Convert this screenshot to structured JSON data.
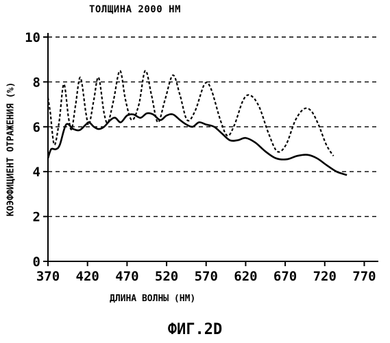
{
  "figure": {
    "title": "ТОЛЩИНА 2000 НМ",
    "caption": "ФИГ.2D"
  },
  "chart_data": {
    "type": "line",
    "title": "ТОЛЩИНА 2000 НМ",
    "xlabel": "ДЛИНА ВОЛНЫ (НМ)",
    "ylabel": "КОЭФФИЦИЕНТ ОТРАЖЕНИЯ (%)",
    "xlim": [
      370,
      780
    ],
    "ylim": [
      0,
      10
    ],
    "x_ticks": [
      370,
      420,
      470,
      520,
      570,
      620,
      670,
      720,
      770
    ],
    "y_ticks": [
      0,
      2,
      4,
      6,
      8,
      10
    ],
    "grid": "horizontal dashed",
    "series": [
      {
        "style": "solid",
        "points": [
          [
            370,
            4.6
          ],
          [
            374,
            5.0
          ],
          [
            380,
            5.0
          ],
          [
            385,
            5.2
          ],
          [
            393,
            6.1
          ],
          [
            402,
            5.9
          ],
          [
            410,
            5.85
          ],
          [
            418,
            6.1
          ],
          [
            422,
            6.2
          ],
          [
            428,
            6.0
          ],
          [
            434,
            5.9
          ],
          [
            441,
            6.0
          ],
          [
            449,
            6.3
          ],
          [
            455,
            6.4
          ],
          [
            462,
            6.2
          ],
          [
            470,
            6.5
          ],
          [
            478,
            6.55
          ],
          [
            487,
            6.4
          ],
          [
            495,
            6.6
          ],
          [
            503,
            6.55
          ],
          [
            512,
            6.3
          ],
          [
            520,
            6.5
          ],
          [
            528,
            6.55
          ],
          [
            537,
            6.3
          ],
          [
            545,
            6.1
          ],
          [
            553,
            6.0
          ],
          [
            561,
            6.2
          ],
          [
            570,
            6.1
          ],
          [
            580,
            6.0
          ],
          [
            590,
            5.7
          ],
          [
            600,
            5.4
          ],
          [
            610,
            5.4
          ],
          [
            620,
            5.5
          ],
          [
            632,
            5.3
          ],
          [
            645,
            4.9
          ],
          [
            658,
            4.6
          ],
          [
            672,
            4.55
          ],
          [
            685,
            4.7
          ],
          [
            698,
            4.75
          ],
          [
            710,
            4.6
          ],
          [
            722,
            4.3
          ],
          [
            735,
            4.0
          ],
          [
            748,
            3.85
          ]
        ]
      },
      {
        "style": "dashed",
        "points": [
          [
            370,
            7.3
          ],
          [
            373,
            6.6
          ],
          [
            378,
            5.2
          ],
          [
            384,
            6.2
          ],
          [
            390,
            7.9
          ],
          [
            396,
            6.4
          ],
          [
            400,
            5.9
          ],
          [
            405,
            7.0
          ],
          [
            411,
            8.2
          ],
          [
            418,
            6.6
          ],
          [
            422,
            6.1
          ],
          [
            428,
            7.2
          ],
          [
            434,
            8.2
          ],
          [
            441,
            6.6
          ],
          [
            446,
            6.2
          ],
          [
            453,
            7.2
          ],
          [
            461,
            8.5
          ],
          [
            468,
            7.2
          ],
          [
            476,
            6.3
          ],
          [
            485,
            7.0
          ],
          [
            493,
            8.5
          ],
          [
            501,
            7.4
          ],
          [
            509,
            6.2
          ],
          [
            518,
            7.2
          ],
          [
            528,
            8.3
          ],
          [
            537,
            7.4
          ],
          [
            546,
            6.3
          ],
          [
            556,
            6.7
          ],
          [
            568,
            7.9
          ],
          [
            576,
            7.7
          ],
          [
            588,
            6.3
          ],
          [
            597,
            5.6
          ],
          [
            606,
            6.1
          ],
          [
            617,
            7.2
          ],
          [
            626,
            7.4
          ],
          [
            637,
            6.9
          ],
          [
            649,
            5.7
          ],
          [
            660,
            4.9
          ],
          [
            671,
            5.2
          ],
          [
            683,
            6.3
          ],
          [
            694,
            6.8
          ],
          [
            703,
            6.7
          ],
          [
            712,
            6.1
          ],
          [
            722,
            5.2
          ],
          [
            731,
            4.7
          ]
        ]
      }
    ]
  }
}
